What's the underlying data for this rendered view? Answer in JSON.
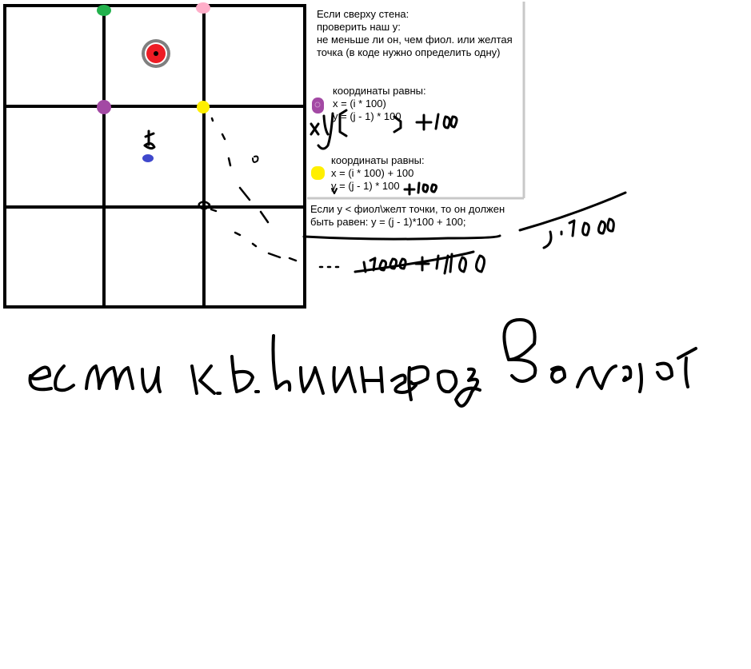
{
  "colors": {
    "background": "#ffffff",
    "ink": "#000000",
    "note_border": "#c8c8c8",
    "green_dot": "#22b14c",
    "pink_dot": "#ffaec9",
    "purple_dot": "#a349a4",
    "yellow_dot": "#ffef00",
    "red_target": "#ed1c24",
    "gray_ring": "#7f7f7f",
    "blue_mark": "#3f48cc"
  },
  "top_note": {
    "line1": "Если сверху стена:",
    "line2": "проверить наш y:",
    "line3": "не меньше ли он, чем фиол. или желтая",
    "line4": "точка (в коде нужно определить одну)"
  },
  "purple_note": {
    "title": "координаты равны:",
    "x_formula": "x = (i * 100)",
    "y_formula": "y = (j - 1) * 100"
  },
  "yellow_note": {
    "title": "координаты равны:",
    "x_formula": "x = (i * 100)",
    "x_suffix": "+ 100",
    "y_formula": "y = (j - 1) * 100"
  },
  "bottom_note": {
    "line1": "Если y < фиол\\желт точки, то он должен",
    "line2": "быть равен: y = (j - 1)*100 + 100;"
  },
  "handwriting": {
    "xy_mark": "x y",
    "plus100_purple": "+100",
    "plus100_yellow": "+100",
    "j100_right": "j · 100",
    "i100_plus100": "i·100 + 100",
    "bottom_phrase": "если к.в. выше поз волит"
  }
}
